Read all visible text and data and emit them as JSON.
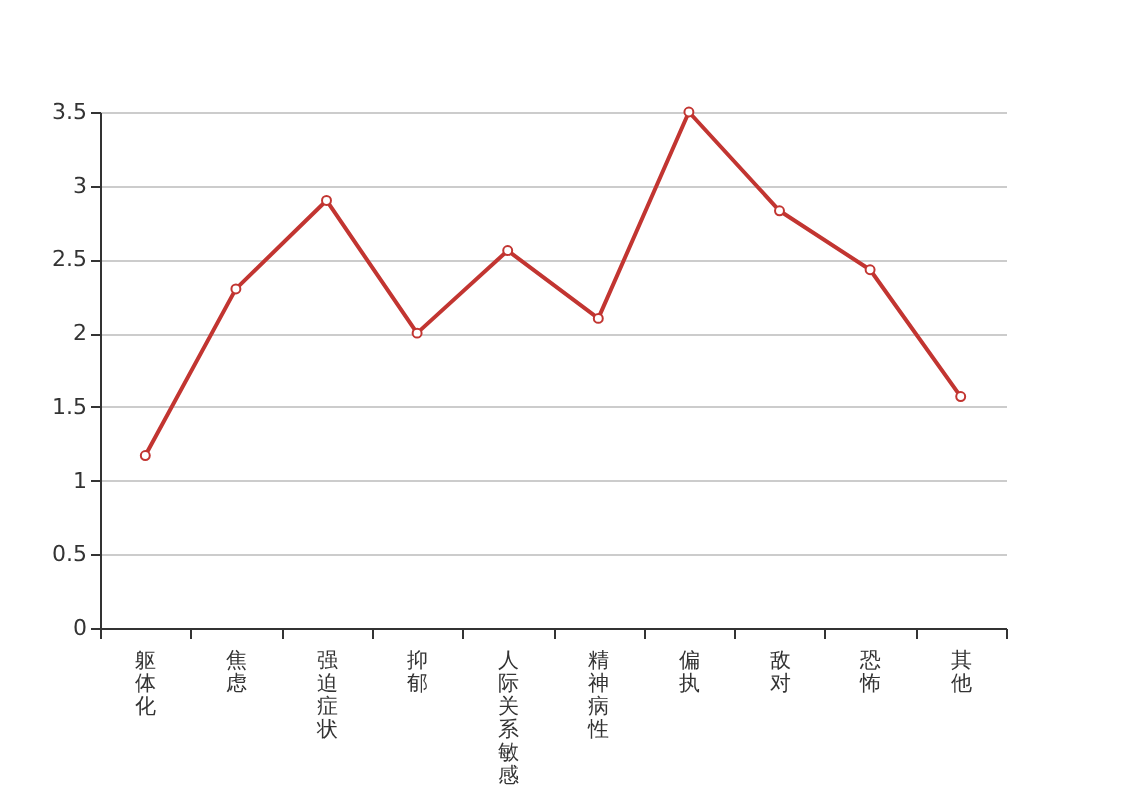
{
  "chart_data": {
    "type": "line",
    "categories": [
      "躯体化",
      "焦虑",
      "强迫症状",
      "抑郁",
      "人际关系敏感",
      "精神病性",
      "偏执",
      "敌对",
      "恐怖",
      "其他"
    ],
    "series": [
      {
        "color": "#c23531",
        "values": [
          1.17,
          2.3,
          2.9,
          2.0,
          2.56,
          2.1,
          3.5,
          2.83,
          2.43,
          1.57
        ]
      }
    ],
    "ylim": [
      0,
      3.5
    ],
    "yticks": [
      0,
      0.5,
      1,
      1.5,
      2,
      2.5,
      3,
      3.5
    ],
    "grid": "y",
    "marker": "circle",
    "line_style": "solid"
  }
}
